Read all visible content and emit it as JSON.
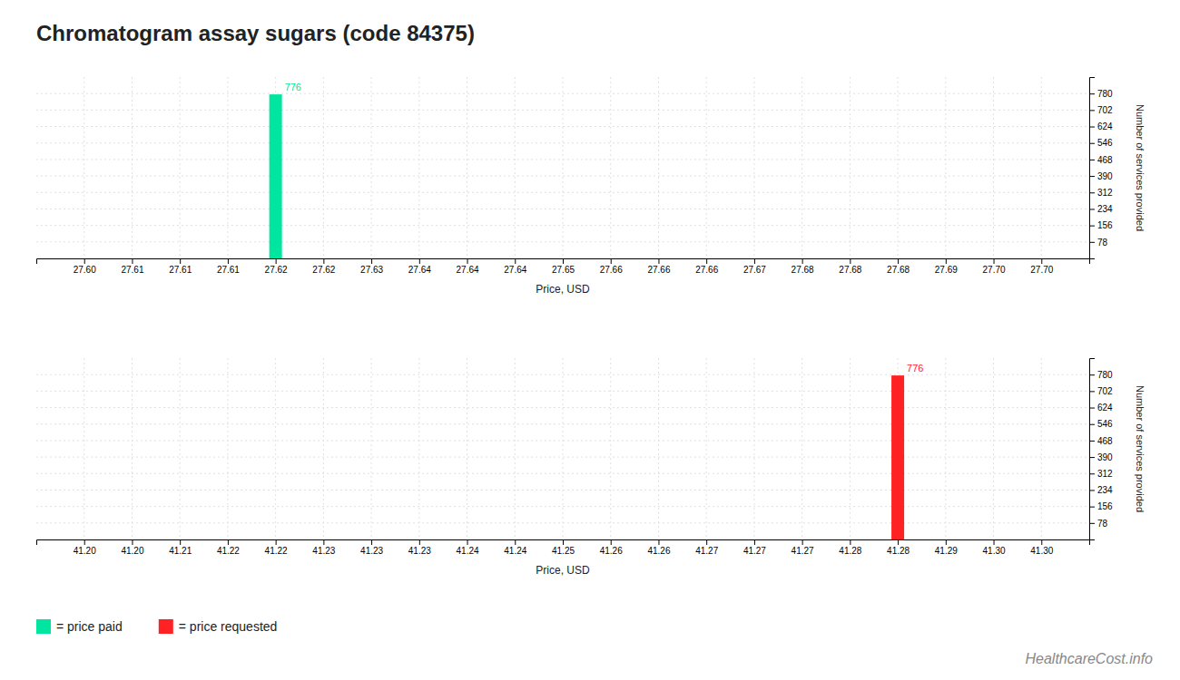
{
  "chart_data": [
    {
      "type": "bar",
      "title": "Chromatogram assay sugars (code 84375)",
      "x": [
        27.62
      ],
      "series": [
        {
          "name": "= price paid",
          "color": "#00e5a0",
          "values": [
            776
          ]
        }
      ],
      "xlim": [
        27.595,
        27.705
      ],
      "xticks": [
        {
          "value": 27.6,
          "label": "27.60"
        },
        {
          "value": 27.605,
          "label": "27.61"
        },
        {
          "value": 27.61,
          "label": "27.61"
        },
        {
          "value": 27.615,
          "label": "27.61"
        },
        {
          "value": 27.62,
          "label": "27.62"
        },
        {
          "value": 27.625,
          "label": "27.62"
        },
        {
          "value": 27.63,
          "label": "27.63"
        },
        {
          "value": 27.635,
          "label": "27.64"
        },
        {
          "value": 27.64,
          "label": "27.64"
        },
        {
          "value": 27.645,
          "label": "27.64"
        },
        {
          "value": 27.65,
          "label": "27.65"
        },
        {
          "value": 27.655,
          "label": "27.66"
        },
        {
          "value": 27.66,
          "label": "27.66"
        },
        {
          "value": 27.665,
          "label": "27.66"
        },
        {
          "value": 27.67,
          "label": "27.67"
        },
        {
          "value": 27.675,
          "label": "27.68"
        },
        {
          "value": 27.68,
          "label": "27.68"
        },
        {
          "value": 27.685,
          "label": "27.68"
        },
        {
          "value": 27.69,
          "label": "27.69"
        },
        {
          "value": 27.695,
          "label": "27.70"
        },
        {
          "value": 27.7,
          "label": "27.70"
        }
      ],
      "ylim": [
        0,
        858
      ],
      "yticks": [
        78,
        156,
        234,
        312,
        390,
        468,
        546,
        624,
        702,
        780
      ],
      "x_label": "Price, USD",
      "y_label": "Number of services provided",
      "grid": true,
      "data_labels": true,
      "legend": "bottom"
    },
    {
      "type": "bar",
      "x": [
        41.285
      ],
      "series": [
        {
          "name": "= price requested",
          "color": "#ff2222",
          "values": [
            776
          ]
        }
      ],
      "xlim": [
        41.195,
        41.305
      ],
      "xticks": [
        {
          "value": 41.2,
          "label": "41.20"
        },
        {
          "value": 41.205,
          "label": "41.20"
        },
        {
          "value": 41.21,
          "label": "41.21"
        },
        {
          "value": 41.215,
          "label": "41.22"
        },
        {
          "value": 41.22,
          "label": "41.22"
        },
        {
          "value": 41.225,
          "label": "41.23"
        },
        {
          "value": 41.23,
          "label": "41.23"
        },
        {
          "value": 41.235,
          "label": "41.23"
        },
        {
          "value": 41.24,
          "label": "41.24"
        },
        {
          "value": 41.245,
          "label": "41.24"
        },
        {
          "value": 41.25,
          "label": "41.25"
        },
        {
          "value": 41.255,
          "label": "41.26"
        },
        {
          "value": 41.26,
          "label": "41.26"
        },
        {
          "value": 41.265,
          "label": "41.27"
        },
        {
          "value": 41.27,
          "label": "41.27"
        },
        {
          "value": 41.275,
          "label": "41.27"
        },
        {
          "value": 41.28,
          "label": "41.28"
        },
        {
          "value": 41.285,
          "label": "41.28"
        },
        {
          "value": 41.29,
          "label": "41.29"
        },
        {
          "value": 41.295,
          "label": "41.30"
        },
        {
          "value": 41.3,
          "label": "41.30"
        }
      ],
      "ylim": [
        0,
        858
      ],
      "yticks": [
        78,
        156,
        234,
        312,
        390,
        468,
        546,
        624,
        702,
        780
      ],
      "x_label": "Price, USD",
      "y_label": "Number of services provided",
      "grid": true,
      "data_labels": true,
      "legend": "bottom",
      "annotations": [
        "HealthcareCost.info"
      ]
    }
  ]
}
